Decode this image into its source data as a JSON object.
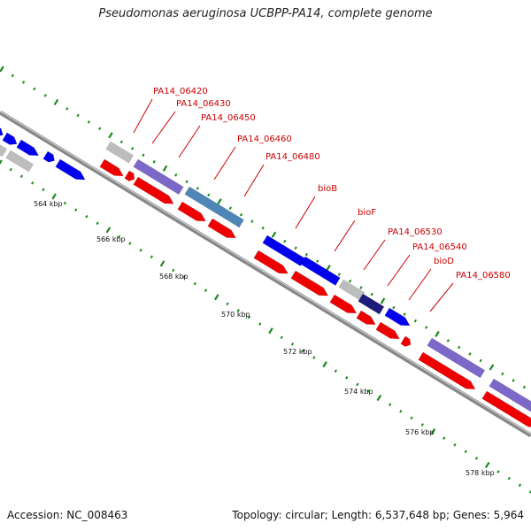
{
  "title": "Pseudomonas aeruginosa UCBPP-PA14, complete genome",
  "footer": {
    "accession": "Accession: NC_008463",
    "summary": "Topology: circular; Length: 6,537,648 bp; Genes: 5,964"
  },
  "colors": {
    "forward_cds": "#0000ee",
    "reverse_cds": "#ee0000",
    "gray_feature": "#bdbdbd",
    "purple_feature": "#7b68c8",
    "steelblue_feature": "#4f86b8",
    "navy_feature": "#1c1c7a",
    "tick": "#1a8a1a",
    "label": "#cc0000",
    "backbone": "#888888"
  },
  "scale_labels": [
    "564 kbp",
    "566 kbp",
    "568 kbp",
    "570 kbp",
    "572 kbp",
    "574 kbp",
    "576 kbp",
    "578 kbp"
  ],
  "gene_labels": [
    "PA14_06420",
    "PA14_06430",
    "PA14_06450",
    "PA14_06460",
    "PA14_06480",
    "bioB",
    "bioF",
    "PA14_06530",
    "PA14_06540",
    "bioD",
    "PA14_06580"
  ]
}
